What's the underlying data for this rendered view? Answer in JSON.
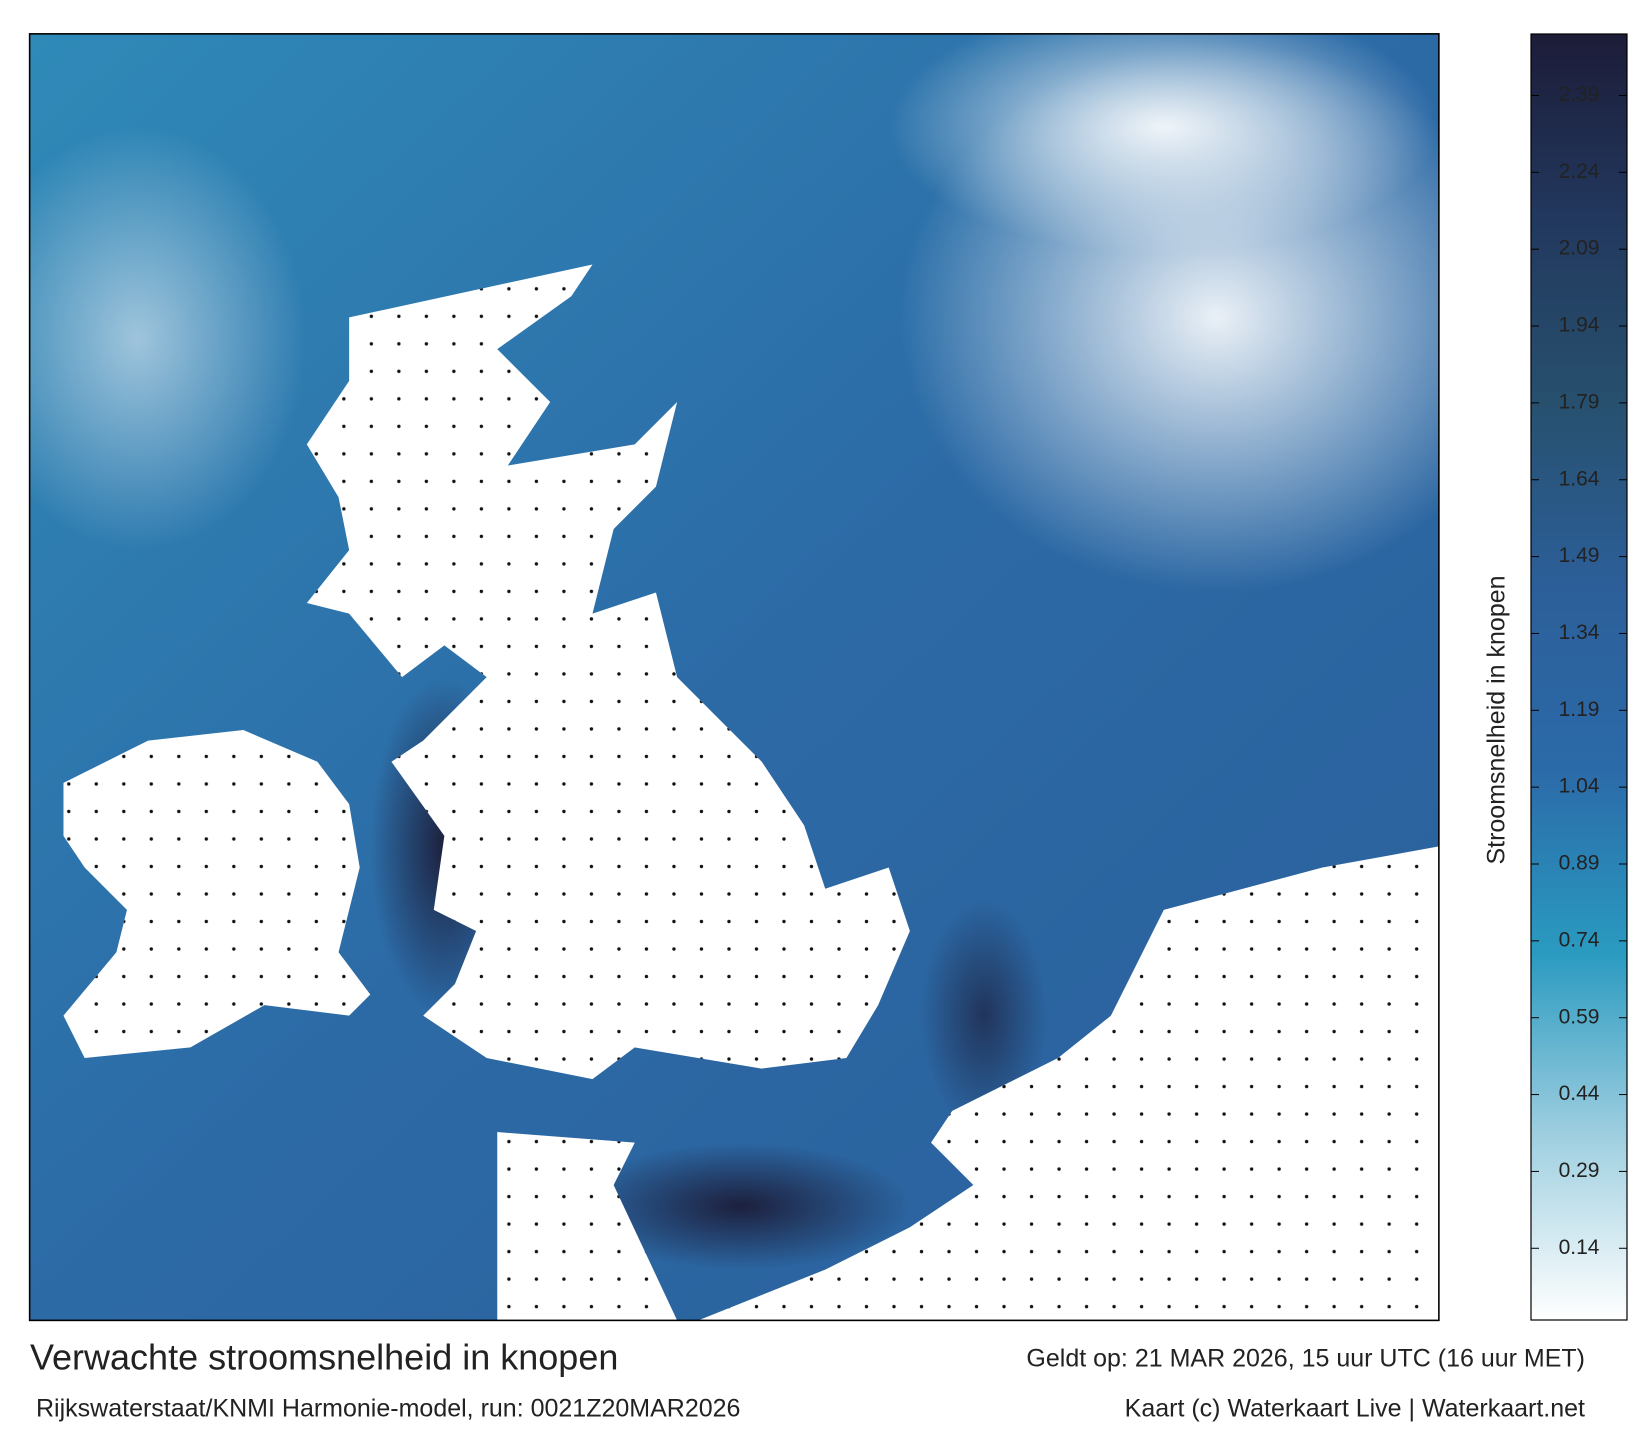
{
  "footer": {
    "title": "Verwachte stroomsnelheid in knopen",
    "valid": "Geldt op: 21 MAR 2026, 15 uur UTC (16 uur MET)",
    "model": "Rijkswaterstaat/KNMI Harmonie-model, run: 0021Z20MAR2026",
    "credit": "Kaart (c) Waterkaart Live | Waterkaart.net"
  },
  "colorbar": {
    "label": "Stroomsnelheid in knopen",
    "range": [
      0,
      2.51
    ],
    "ticks": [
      0.14,
      0.29,
      0.44,
      0.59,
      0.74,
      0.89,
      1.04,
      1.19,
      1.34,
      1.49,
      1.64,
      1.79,
      1.94,
      2.09,
      2.24,
      2.39
    ],
    "colors": [
      "#ffffff",
      "#9fcfe0",
      "#2a9ac0",
      "#2b6aa8",
      "#2c5f99",
      "#27506e",
      "#22385e",
      "#1c1c38"
    ]
  }
}
